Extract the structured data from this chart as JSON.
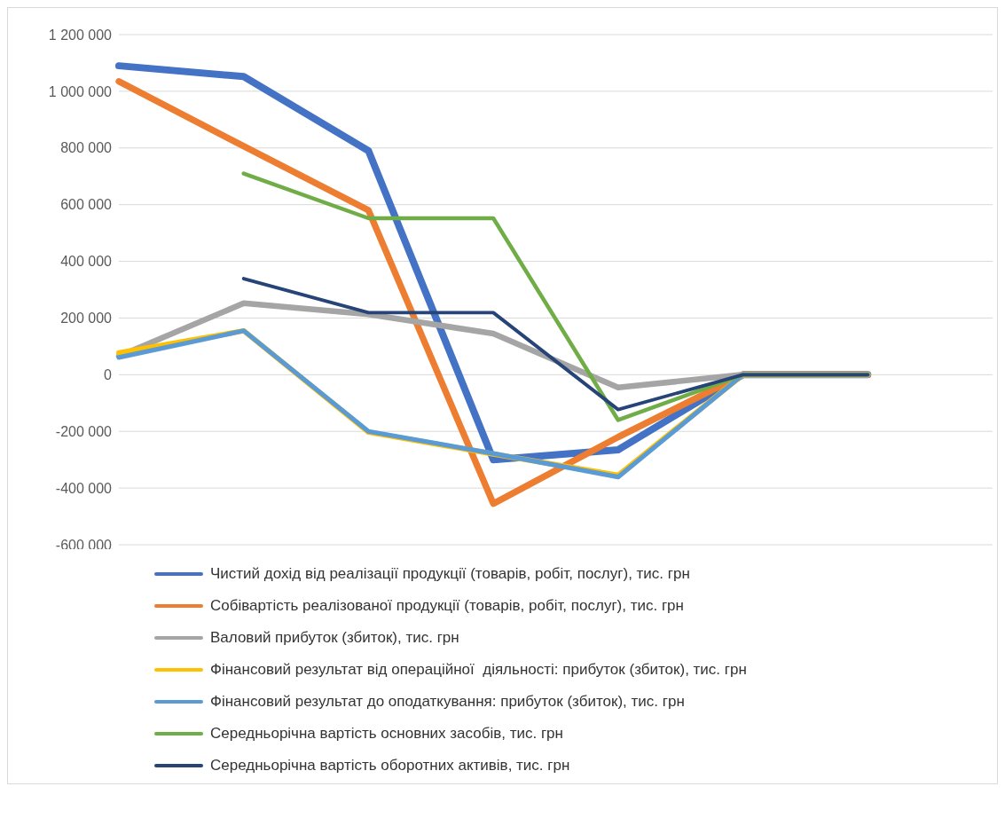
{
  "chart_data": {
    "type": "line",
    "categories": [
      null,
      null,
      null,
      null,
      null,
      null,
      null,
      null
    ],
    "series": [
      {
        "name": "Чистий дохід від реалізації продукції (товарів, робіт, послуг), тис. грн",
        "color": "#4472c4",
        "values": [
          1090000,
          1052000,
          790000,
          -300000,
          -265000,
          0,
          0,
          null
        ]
      },
      {
        "name": "Собівартість реалізованої продукції (товарів, робіт, послуг), тис. грн",
        "color": "#ed7d31",
        "values": [
          1035000,
          806000,
          580000,
          -455000,
          -220000,
          0,
          0,
          null
        ]
      },
      {
        "name": "Валовий прибуток (збиток), тис. грн",
        "color": "#a5a5a5",
        "values": [
          65000,
          252000,
          213000,
          145000,
          -45000,
          0,
          0,
          null
        ]
      },
      {
        "name": "Фінансовий результат від операційної  діяльності: прибуток (збиток), тис. грн",
        "color": "#ffc000",
        "values": [
          77000,
          155000,
          -203000,
          -280000,
          -355000,
          0,
          0,
          null
        ]
      },
      {
        "name": "Фінансовий результат до оподаткування: прибуток (збиток), тис. грн",
        "color": "#5b9bd5",
        "values": [
          61000,
          155000,
          -200000,
          -278000,
          -361000,
          0,
          0,
          null
        ]
      },
      {
        "name": "Середньорічна вартість основних засобів, тис. грн",
        "color": "#70ad47",
        "values": [
          null,
          710000,
          552000,
          552000,
          -160000,
          0,
          0,
          null
        ]
      },
      {
        "name": "Середньорічна вартість оборотних активів, тис. грн",
        "color": "#264478",
        "values": [
          null,
          339000,
          219000,
          219000,
          -123000,
          0,
          0,
          null
        ]
      }
    ],
    "ylim": [
      -600000,
      1200000
    ],
    "yticks": [
      {
        "value": -600000,
        "label": "-600 000"
      },
      {
        "value": -400000,
        "label": "-400 000"
      },
      {
        "value": -200000,
        "label": "-200 000"
      },
      {
        "value": 0,
        "label": "0"
      },
      {
        "value": 200000,
        "label": "200 000"
      },
      {
        "value": 400000,
        "label": "400 000"
      },
      {
        "value": 600000,
        "label": "600 000"
      },
      {
        "value": 800000,
        "label": "800 000"
      },
      {
        "value": 1000000,
        "label": "1 000 000"
      },
      {
        "value": 1200000,
        "label": "1 200 000"
      }
    ],
    "grid": "y",
    "legend": "bottom",
    "marker": "none",
    "line_style": "solid"
  }
}
